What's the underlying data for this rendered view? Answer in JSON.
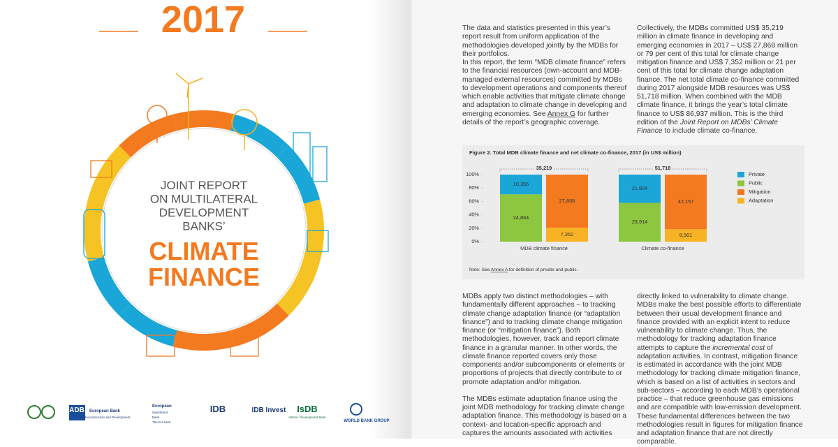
{
  "cover": {
    "year": "2017",
    "title_lines": [
      "JOINT REPORT",
      "ON MULTILATERAL",
      "DEVELOPMENT",
      "BANKS’"
    ],
    "headline_lines": [
      "CLIMATE",
      "FINANCE"
    ],
    "logos": [
      [
        "ADB"
      ],
      [
        "European Bank",
        "for Reconstruction and Development"
      ],
      [
        "European",
        "Investment",
        "Bank",
        "The EU bank"
      ],
      [
        "IDB"
      ],
      [
        "IDB Invest"
      ],
      [
        "IsDB",
        "Islamic Development Bank"
      ],
      [
        "WORLD BANK GROUP"
      ]
    ]
  },
  "text_top": [
    [
      [
        {
          "text": "The data and statistics presented in this year’s report result from uniform application of the methodologies developed jointly by the MDBs for their portfolios."
        }
      ],
      [
        {
          "text": "In this report, the term “MDB climate finance” refers to the financial resources (own-account and MDB-managed external resources) committed by MDBs to development operations and components thereof which enable activities that mitigate climate change and adaptation to climate change in developing and emerging economies. See "
        },
        {
          "text": "Annex G",
          "style": "underline"
        },
        {
          "text": " for further details of the report’s geographic coverage."
        }
      ]
    ],
    [
      [
        {
          "text": "Collectively, the MDBs committed US$ 35,219 million in climate finance in developing and emerging economies in 2017 – US$ 27,868 million or 79 per cent of this total for climate change mitigation finance and US$ 7,352 million or 21 per cent of this total for climate change adaptation finance. The net total climate co-finance committed during 2017 alongside MDB resources was US$ 51,718 million. When combined with the MDB climate finance, it brings the year’s total climate finance to US$ 86,937 million. This is the third edition of the "
        },
        {
          "text": "Joint Report on MDBs’ Climate Finance",
          "style": "italic"
        },
        {
          "text": " to include climate co-finance."
        }
      ]
    ]
  ],
  "text_bottom": [
    [
      [
        {
          "text": "MDBs apply two distinct methodologies – with fundamentally different approaches – to tracking climate change adaptation finance (or “adaptation finance”) and to tracking climate change mitigation finance (or “mitigation finance”). Both methodologies, however, track and report climate finance in a granular manner. In other words, the climate finance reported covers only those components and/or subcomponents or elements or proportions of projects that directly contribute to or promote adaptation and/or mitigation."
        }
      ],
      [
        {
          "text": "The MDBs estimate adaptation finance using the joint MDB methodology for tracking climate change adaptation finance. This methodology is based on a context- and location-specific approach and captures the amounts associated with activities"
        }
      ]
    ],
    [
      [
        {
          "text": "directly linked to vulnerability to climate change. MDBs make the best possible efforts to differentiate between their usual development finance and finance provided with an explicit intent to reduce vulnerability to climate change. Thus, the methodology for tracking adaptation finance attempts to capture the "
        },
        {
          "text": "incremental cost",
          "style": "italic"
        },
        {
          "text": " of adaptation activities. In contrast, mitigation finance is estimated in accordance with the joint MDB methodology for tracking climate mitigation finance, which is based on a list of activities in sectors and sub-sectors – according to each MDB’s operational practice – that reduce greenhouse gas emissions and are compatible with low-emission development. These fundamental differences between the two methodologies result in figures for mitigation finance and adaptation finance that are not directly comparable."
        }
      ]
    ]
  ],
  "chart_data": {
    "type": "bar",
    "stacked": "percent",
    "title": "Figure 2. Total MDB climate finance and net climate co-finance, 2017 (in US$ million)",
    "categories": [
      "MDB climate finance",
      "Climate co-finance"
    ],
    "series": [
      {
        "name": "Private",
        "color": "#1ba6d8",
        "stack": 0,
        "values": [
          10355,
          21804
        ],
        "value_labels": [
          "10,355",
          "21,804"
        ]
      },
      {
        "name": "Public",
        "color": "#8dc63f",
        "stack": 0,
        "values": [
          24864,
          29914
        ],
        "value_labels": [
          "24,864",
          "29,914"
        ]
      },
      {
        "name": "Mitigation",
        "color": "#f47a20",
        "stack": 1,
        "values": [
          27868,
          42157
        ],
        "value_labels": [
          "27,868",
          "42,157"
        ]
      },
      {
        "name": "Adaptation",
        "color": "#f8b324",
        "stack": 1,
        "values": [
          7352,
          9561
        ],
        "value_labels": [
          "7,352",
          "9,561"
        ]
      }
    ],
    "totals": [
      35219,
      51718
    ],
    "total_labels": [
      "35,219",
      "51,718"
    ],
    "ylim": [
      0,
      100
    ],
    "yticks": [
      {
        "value": 0,
        "label": "0%"
      },
      {
        "value": 20,
        "label": "20%"
      },
      {
        "value": 40,
        "label": "40%"
      },
      {
        "value": 60,
        "label": "60%"
      },
      {
        "value": 80,
        "label": "80%"
      },
      {
        "value": 100,
        "label": "100%"
      }
    ],
    "grid": false,
    "legend": "right",
    "note": [
      {
        "text": "Note: See "
      },
      {
        "text": "Annex A",
        "style": "underline"
      },
      {
        "text": " for definition of private and public."
      }
    ]
  }
}
